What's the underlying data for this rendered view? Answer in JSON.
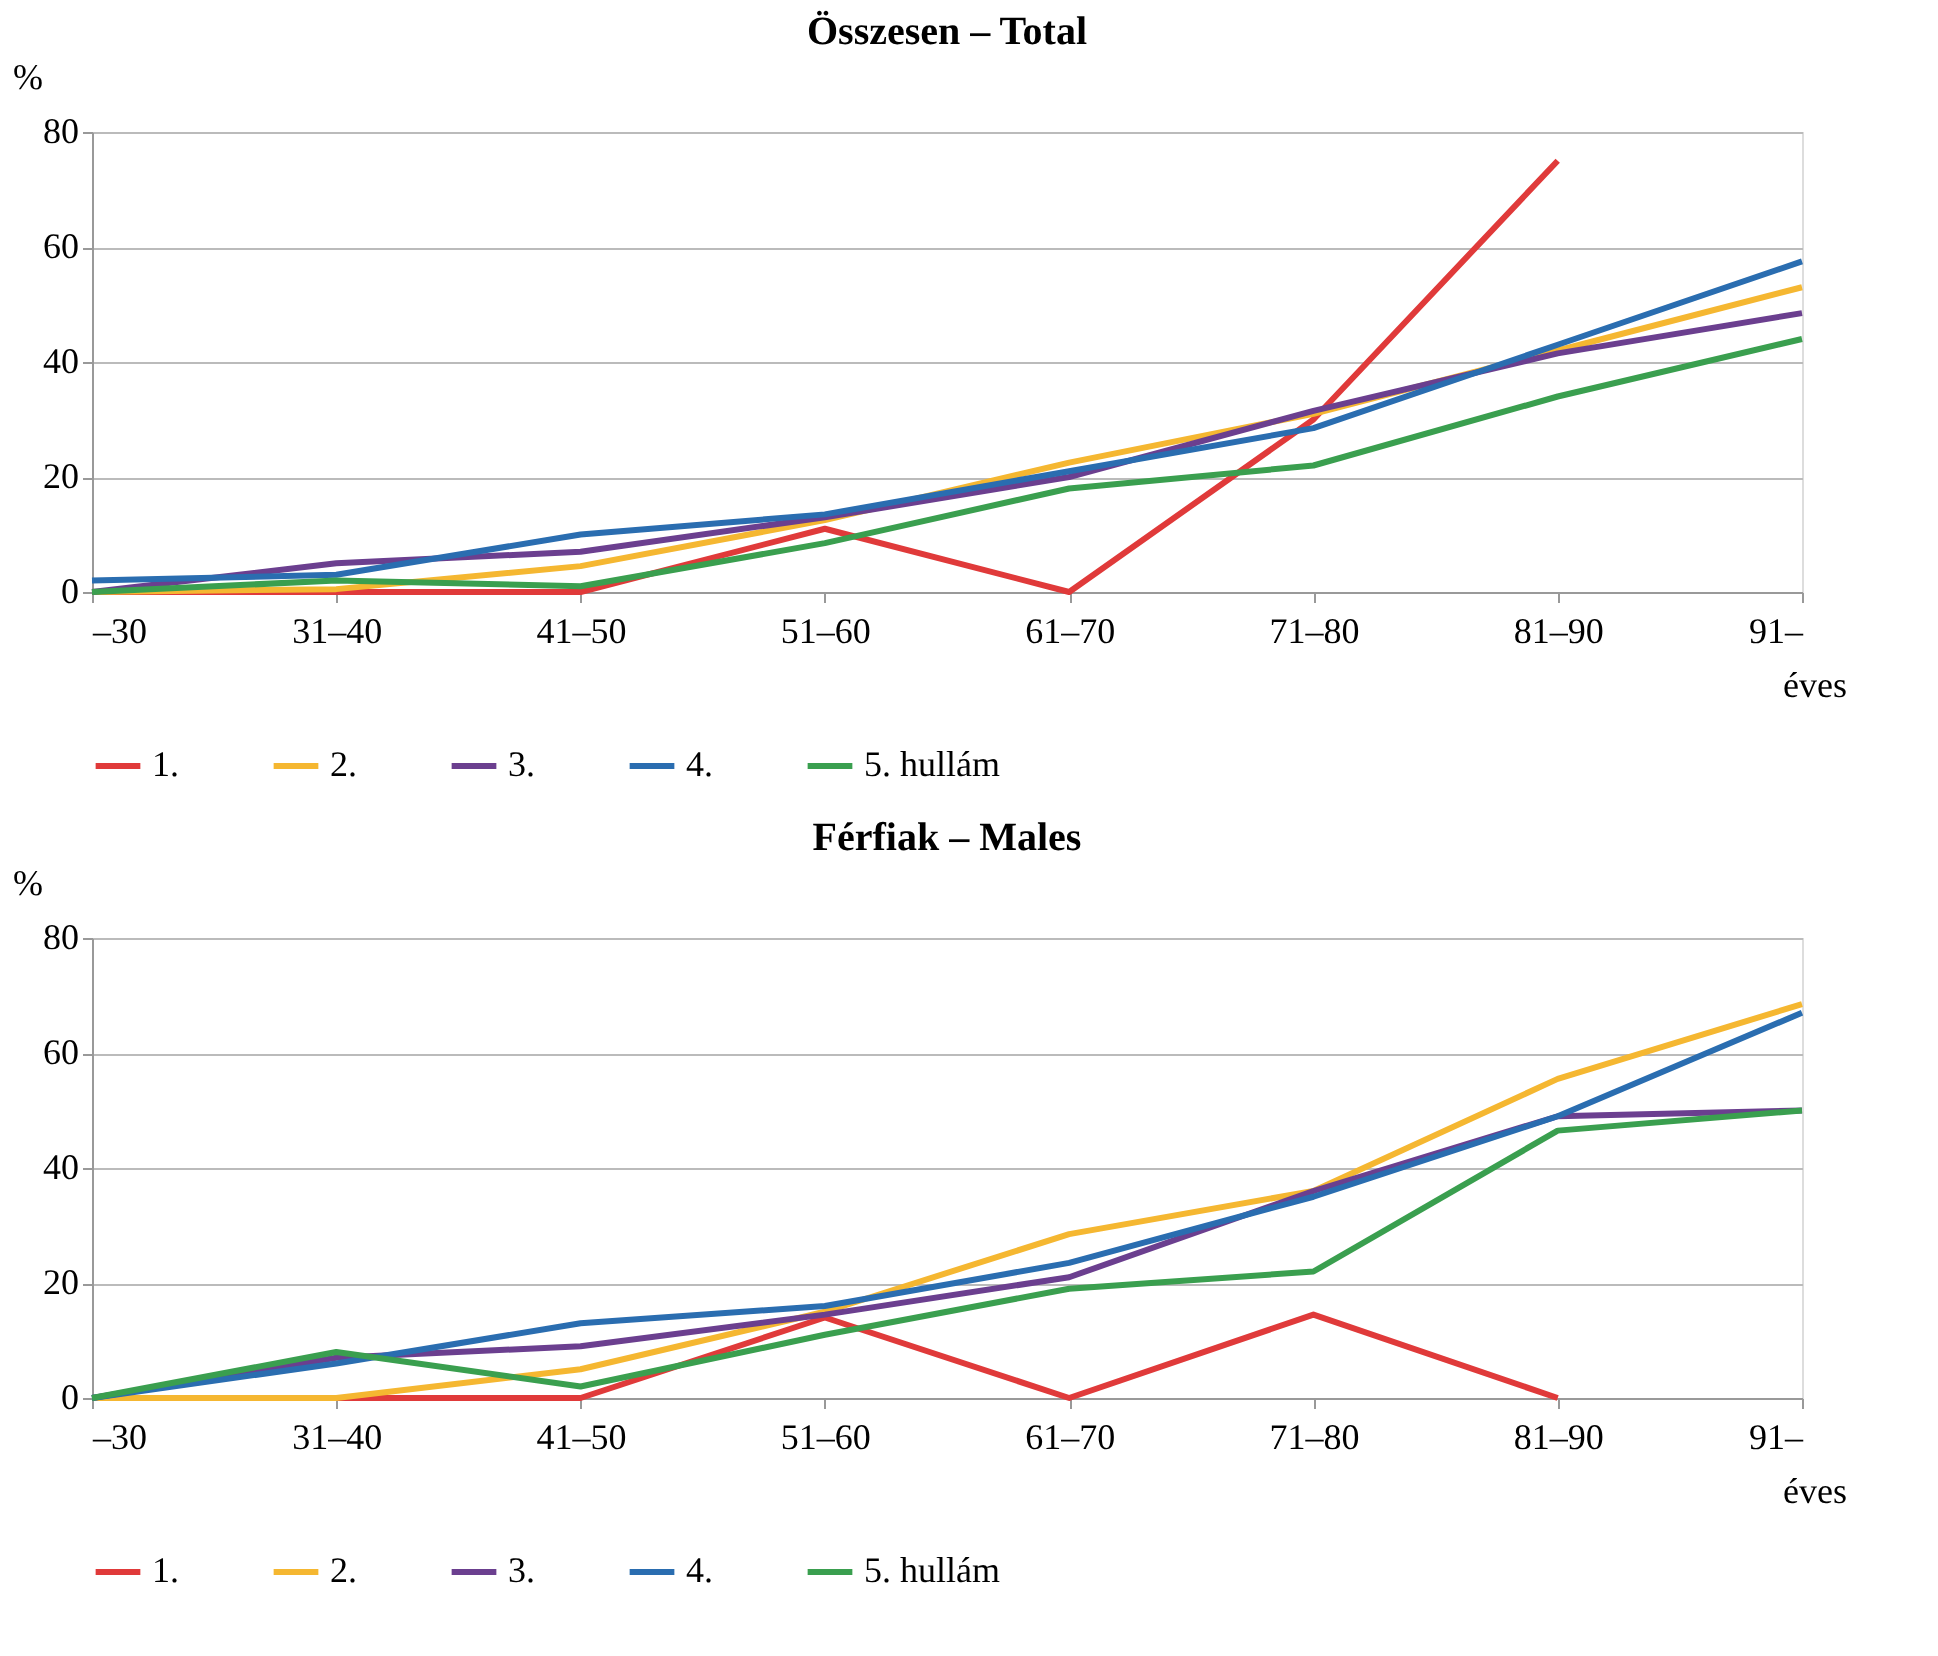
{
  "chart_data": [
    {
      "type": "line",
      "title": "Összesen – Total",
      "ylabel": "%",
      "xlabel": "éves",
      "categories": [
        "–30",
        "31–40",
        "41–50",
        "51–60",
        "61–70",
        "71–80",
        "81–90",
        "91–"
      ],
      "ylim": [
        0,
        80
      ],
      "yticks": [
        0,
        20,
        40,
        60,
        80
      ],
      "grid": "y",
      "legend": "bottom",
      "marker": "none",
      "line_style": "solid",
      "series": [
        {
          "name": "1.",
          "color": "#e03a3a",
          "values": [
            0,
            0,
            0,
            11,
            0,
            30,
            75,
            null
          ]
        },
        {
          "name": "2.",
          "color": "#f5b731",
          "values": [
            0,
            0.5,
            4.5,
            12.5,
            22.5,
            31,
            42,
            53
          ]
        },
        {
          "name": "3.",
          "color": "#6b3f8f",
          "values": [
            0,
            5,
            7,
            13,
            20,
            31.5,
            41.5,
            48.5
          ]
        },
        {
          "name": "4.",
          "color": "#2a6db0",
          "values": [
            2,
            3,
            10,
            13.5,
            21,
            28.5,
            43,
            57.5
          ]
        },
        {
          "name": "5. hullám",
          "color": "#3a9f4f",
          "values": [
            0,
            2,
            1,
            8.5,
            18,
            22,
            34,
            44
          ]
        }
      ]
    },
    {
      "type": "line",
      "title": "Férfiak – Males",
      "ylabel": "%",
      "xlabel": "éves",
      "categories": [
        "–30",
        "31–40",
        "41–50",
        "51–60",
        "61–70",
        "71–80",
        "81–90",
        "91–"
      ],
      "ylim": [
        0,
        80
      ],
      "yticks": [
        0,
        20,
        40,
        60,
        80
      ],
      "grid": "y",
      "legend": "bottom",
      "marker": "none",
      "line_style": "solid",
      "series": [
        {
          "name": "1.",
          "color": "#e03a3a",
          "values": [
            0,
            0,
            0,
            14,
            0,
            14.5,
            0,
            null
          ]
        },
        {
          "name": "2.",
          "color": "#f5b731",
          "values": [
            0,
            0,
            5,
            15,
            28.5,
            36,
            55.5,
            68.5
          ]
        },
        {
          "name": "3.",
          "color": "#6b3f8f",
          "values": [
            0,
            7,
            9,
            14.5,
            21,
            36,
            49,
            50
          ]
        },
        {
          "name": "4.",
          "color": "#2a6db0",
          "values": [
            0,
            6,
            13,
            16,
            23.5,
            35,
            49,
            67
          ]
        },
        {
          "name": "5. hullám",
          "color": "#3a9f4f",
          "values": [
            0,
            8,
            2,
            11,
            19,
            22,
            46.5,
            50
          ]
        }
      ]
    }
  ]
}
